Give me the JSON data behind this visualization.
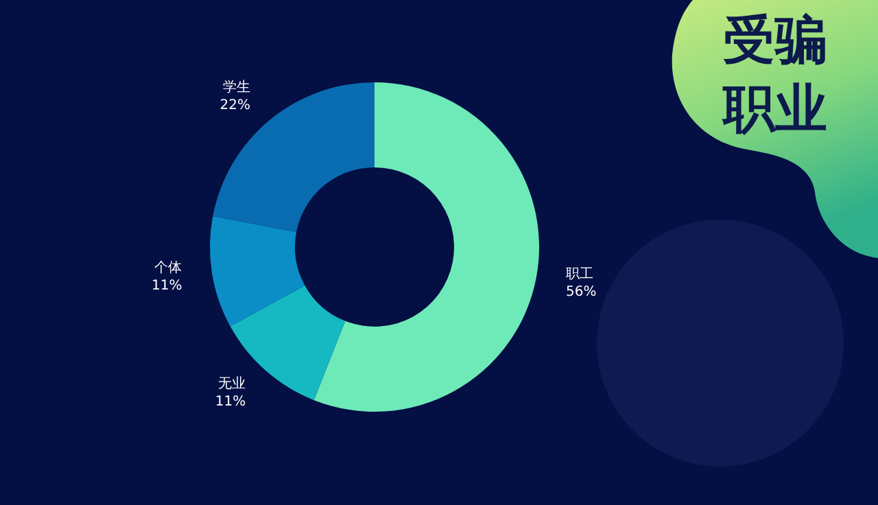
{
  "chart_data": {
    "type": "donut",
    "title": "受骗职业",
    "categories": [
      "职工",
      "无业",
      "个体",
      "学生"
    ],
    "values": [
      56,
      11,
      11,
      22
    ],
    "value_labels": [
      "56%",
      "11%",
      "11%",
      "22%"
    ],
    "colors": [
      "#6eeab8",
      "#16b8c2",
      "#0b8ec6",
      "#0a6cb0"
    ]
  }
}
